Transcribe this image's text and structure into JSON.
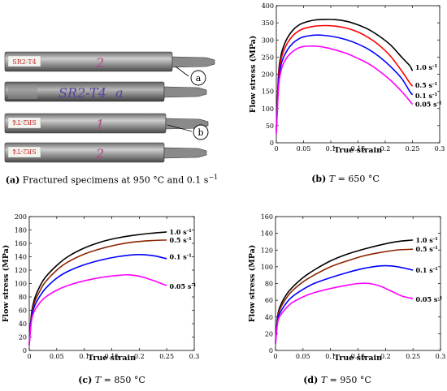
{
  "panel_a": {
    "caption_label": "(a)",
    "caption_text": "Fractured specimens at 950 °C and 0.1 s",
    "caption_sup": "−1",
    "specimens": [
      {
        "marking": "SR2-T4",
        "ink": "2",
        "ink_color": "#b04a8a"
      },
      {
        "marking": "SR2-T4",
        "ink": "a",
        "ink_color": "#5a3fa0"
      },
      {
        "marking": "SR2-T4",
        "ink": "1",
        "ink_color": "#b04a8a"
      },
      {
        "marking": "SR2-T4",
        "ink": "2",
        "ink_color": "#b04a8a"
      }
    ],
    "callouts": [
      "a",
      "b"
    ]
  },
  "chart_data": [
    {
      "type": "line",
      "panel": "b",
      "caption_label": "(b)",
      "caption_T": "T",
      "caption_rest": " = 650 °C",
      "xlabel": "True strain",
      "ylabel": "Flow stress (MPa)",
      "xlim": [
        0,
        0.3
      ],
      "ylim": [
        0,
        400
      ],
      "xticks": [
        0,
        0.05,
        0.1,
        0.15,
        0.2,
        0.25,
        0.3
      ],
      "yticks": [
        0,
        50,
        100,
        150,
        200,
        250,
        300,
        350,
        400
      ],
      "xtick_labels": [
        "0",
        "0.05",
        "0.1",
        "0.15",
        "0.2",
        "0.25",
        "0.3"
      ],
      "ytick_labels": [
        "0",
        "50",
        "100",
        "150",
        "200",
        "250",
        "300",
        "350",
        "400"
      ],
      "series": [
        {
          "name": "1.0 s",
          "color": "#000000",
          "x": [
            0,
            0.004,
            0.008,
            0.012,
            0.02,
            0.03,
            0.04,
            0.05,
            0.07,
            0.09,
            0.11,
            0.13,
            0.15,
            0.17,
            0.19,
            0.21,
            0.23,
            0.245,
            0.25
          ],
          "y": [
            40,
            200,
            250,
            275,
            305,
            328,
            342,
            350,
            358,
            360,
            359,
            354,
            344,
            330,
            310,
            285,
            250,
            225,
            210
          ]
        },
        {
          "name": "0.5 s",
          "color": "#ff0000",
          "x": [
            0,
            0.004,
            0.008,
            0.012,
            0.02,
            0.03,
            0.04,
            0.05,
            0.07,
            0.09,
            0.11,
            0.13,
            0.15,
            0.17,
            0.19,
            0.21,
            0.23,
            0.245,
            0.25
          ],
          "y": [
            35,
            190,
            238,
            262,
            290,
            312,
            325,
            333,
            340,
            342,
            340,
            334,
            323,
            306,
            283,
            252,
            210,
            175,
            165
          ]
        },
        {
          "name": "0.1 s",
          "color": "#0000ff",
          "x": [
            0,
            0.004,
            0.008,
            0.012,
            0.02,
            0.03,
            0.04,
            0.05,
            0.07,
            0.09,
            0.11,
            0.13,
            0.15,
            0.17,
            0.19,
            0.21,
            0.23,
            0.245,
            0.25
          ],
          "y": [
            30,
            175,
            222,
            245,
            270,
            290,
            302,
            309,
            314,
            313,
            308,
            300,
            288,
            272,
            250,
            222,
            188,
            150,
            140
          ]
        },
        {
          "name": "0.05 s",
          "color": "#ff00ff",
          "x": [
            0,
            0.004,
            0.008,
            0.012,
            0.02,
            0.03,
            0.04,
            0.05,
            0.07,
            0.09,
            0.11,
            0.13,
            0.15,
            0.17,
            0.19,
            0.21,
            0.23,
            0.245,
            0.25
          ],
          "y": [
            25,
            160,
            205,
            227,
            250,
            266,
            276,
            281,
            282,
            278,
            270,
            260,
            246,
            230,
            208,
            182,
            150,
            122,
            112
          ]
        }
      ],
      "labels": [
        {
          "text": "1.0 s",
          "sup": "-1",
          "x": 0.255,
          "y": 220
        },
        {
          "text": "0.5 s",
          "sup": "-1",
          "x": 0.255,
          "y": 168
        },
        {
          "text": "0.1 s",
          "sup": "-1",
          "x": 0.255,
          "y": 137
        },
        {
          "text": "0.05 s",
          "sup": "-1",
          "x": 0.255,
          "y": 113
        }
      ]
    },
    {
      "type": "line",
      "panel": "c",
      "caption_label": "(c)",
      "caption_T": "T",
      "caption_rest": " = 850 °C",
      "xlabel": "True strain",
      "ylabel": "Flow stress (MPa)",
      "xlim": [
        0,
        0.3
      ],
      "ylim": [
        0,
        200
      ],
      "xticks": [
        0,
        0.05,
        0.1,
        0.15,
        0.2,
        0.25,
        0.3
      ],
      "yticks": [
        0,
        20,
        40,
        60,
        80,
        100,
        120,
        140,
        160,
        180,
        200
      ],
      "xtick_labels": [
        "0",
        "0.05",
        "0.1",
        "0.15",
        "0.2",
        "0.25",
        "0.3"
      ],
      "ytick_labels": [
        "0",
        "20",
        "40",
        "60",
        "80",
        "100",
        "120",
        "140",
        "160",
        "180",
        "200"
      ],
      "series": [
        {
          "name": "1.0 s",
          "color": "#000000",
          "x": [
            0,
            0.004,
            0.01,
            0.02,
            0.03,
            0.05,
            0.07,
            0.1,
            0.13,
            0.16,
            0.19,
            0.22,
            0.25
          ],
          "y": [
            10,
            55,
            78,
            97,
            110,
            127,
            140,
            153,
            162,
            168,
            172,
            175,
            177
          ]
        },
        {
          "name": "0.5 s",
          "color": "#8b2500",
          "x": [
            0,
            0.004,
            0.01,
            0.02,
            0.03,
            0.05,
            0.07,
            0.1,
            0.13,
            0.16,
            0.19,
            0.22,
            0.25
          ],
          "y": [
            10,
            52,
            73,
            90,
            103,
            120,
            132,
            144,
            152,
            158,
            162,
            164,
            165
          ]
        },
        {
          "name": "0.1 s",
          "color": "#0000ff",
          "x": [
            0,
            0.004,
            0.01,
            0.02,
            0.03,
            0.05,
            0.07,
            0.1,
            0.13,
            0.16,
            0.19,
            0.21,
            0.23,
            0.25
          ],
          "y": [
            8,
            48,
            67,
            82,
            93,
            108,
            118,
            128,
            135,
            140,
            143,
            143,
            141,
            137
          ]
        },
        {
          "name": "0.05 s",
          "color": "#ff00ff",
          "x": [
            0,
            0.004,
            0.01,
            0.02,
            0.03,
            0.05,
            0.07,
            0.1,
            0.13,
            0.16,
            0.18,
            0.2,
            0.22,
            0.24,
            0.25
          ],
          "y": [
            8,
            44,
            60,
            72,
            80,
            90,
            97,
            104,
            109,
            112,
            113,
            111,
            106,
            100,
            97
          ]
        }
      ],
      "labels": [
        {
          "text": "1.0 s",
          "sup": "-1",
          "x": 0.255,
          "y": 177
        },
        {
          "text": "0.5 s",
          "sup": "-1",
          "x": 0.255,
          "y": 165
        },
        {
          "text": "0.1 s",
          "sup": "-1",
          "x": 0.255,
          "y": 140
        },
        {
          "text": "0.05 s",
          "sup": "-1",
          "x": 0.255,
          "y": 96
        }
      ]
    },
    {
      "type": "line",
      "panel": "d",
      "caption_label": "(d)",
      "caption_T": "T",
      "caption_rest": " = 950 °C",
      "xlabel": "True strain",
      "ylabel": "Flow stress (MPa)",
      "xlim": [
        0,
        0.3
      ],
      "ylim": [
        0,
        160
      ],
      "xticks": [
        0,
        0.05,
        0.1,
        0.15,
        0.2,
        0.25,
        0.3
      ],
      "yticks": [
        0,
        20,
        40,
        60,
        80,
        100,
        120,
        140,
        160
      ],
      "xtick_labels": [
        "0",
        "0.05",
        "0.1",
        "0.15",
        "0.2",
        "0.25",
        "0.3"
      ],
      "ytick_labels": [
        "0",
        "20",
        "40",
        "60",
        "80",
        "100",
        "120",
        "140",
        "160"
      ],
      "series": [
        {
          "name": "1.0 s",
          "color": "#000000",
          "x": [
            0,
            0.004,
            0.01,
            0.02,
            0.03,
            0.05,
            0.07,
            0.1,
            0.13,
            0.16,
            0.19,
            0.22,
            0.25
          ],
          "y": [
            10,
            42,
            55,
            67,
            75,
            87,
            96,
            107,
            115,
            121,
            126,
            130,
            132
          ]
        },
        {
          "name": "0.5 s",
          "color": "#8b2500",
          "x": [
            0,
            0.004,
            0.01,
            0.02,
            0.03,
            0.05,
            0.07,
            0.1,
            0.13,
            0.16,
            0.19,
            0.22,
            0.25
          ],
          "y": [
            10,
            40,
            52,
            63,
            71,
            82,
            90,
            100,
            107,
            113,
            117,
            120,
            121
          ]
        },
        {
          "name": "0.1 s",
          "color": "#0000ff",
          "x": [
            0,
            0.004,
            0.01,
            0.02,
            0.03,
            0.05,
            0.07,
            0.1,
            0.13,
            0.16,
            0.19,
            0.21,
            0.23,
            0.25
          ],
          "y": [
            8,
            37,
            47,
            57,
            64,
            73,
            80,
            87,
            93,
            98,
            101,
            101,
            99,
            96
          ]
        },
        {
          "name": "0.05 s",
          "color": "#ff00ff",
          "x": [
            0,
            0.004,
            0.01,
            0.02,
            0.03,
            0.05,
            0.07,
            0.1,
            0.13,
            0.15,
            0.17,
            0.19,
            0.21,
            0.23,
            0.25
          ],
          "y": [
            8,
            34,
            43,
            51,
            57,
            64,
            69,
            74,
            78,
            80,
            80,
            77,
            71,
            65,
            62
          ]
        }
      ],
      "labels": [
        {
          "text": "1.0 s",
          "sup": "-1",
          "x": 0.255,
          "y": 132
        },
        {
          "text": "0.5 s",
          "sup": "-1",
          "x": 0.255,
          "y": 121
        },
        {
          "text": "0.1 s",
          "sup": "-1",
          "x": 0.255,
          "y": 96
        },
        {
          "text": "0.05 s",
          "sup": "-1",
          "x": 0.255,
          "y": 61
        }
      ]
    }
  ]
}
